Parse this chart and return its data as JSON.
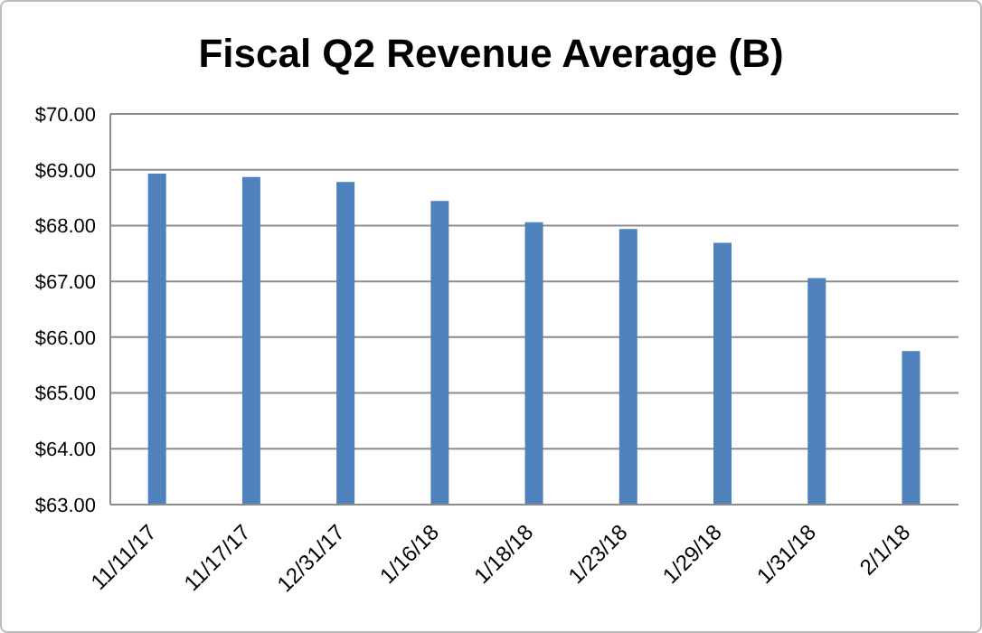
{
  "chart_data": {
    "type": "bar",
    "title": "Fiscal Q2 Revenue Average (B)",
    "categories": [
      "11/11/17",
      "11/17/17",
      "12/31/17",
      "1/16/18",
      "1/18/18",
      "1/23/18",
      "1/29/18",
      "1/31/18",
      "2/1/18"
    ],
    "values": [
      68.93,
      68.87,
      68.78,
      68.44,
      68.06,
      67.94,
      67.69,
      67.06,
      65.75
    ],
    "color": "#4f81bd",
    "ylim": [
      63,
      70
    ],
    "yticks": [
      {
        "value": 63,
        "label": "$63.00"
      },
      {
        "value": 64,
        "label": "$64.00"
      },
      {
        "value": 65,
        "label": "$65.00"
      },
      {
        "value": 66,
        "label": "$66.00"
      },
      {
        "value": 67,
        "label": "$67.00"
      },
      {
        "value": 68,
        "label": "$68.00"
      },
      {
        "value": 69,
        "label": "$69.00"
      },
      {
        "value": 70,
        "label": "$70.00"
      }
    ],
    "grid": "y"
  }
}
